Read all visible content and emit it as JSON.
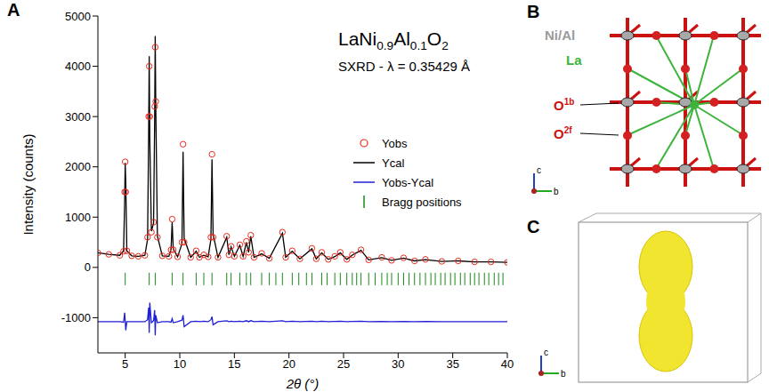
{
  "chart_data": {
    "type": "line",
    "title": "LaNi0.9Al0.1O2",
    "subtitle": "SXRD - λ = 0.35429 Å",
    "x_label": "2θ (°)",
    "y_label": "Intensity (counts)",
    "x": [
      2.5,
      3.5,
      4.5,
      4.85,
      4.95,
      5.0,
      5.05,
      5.15,
      5.6,
      6.2,
      6.8,
      7.05,
      7.15,
      7.2,
      7.25,
      7.4,
      7.6,
      7.7,
      7.75,
      7.8,
      7.95,
      8.4,
      9.0,
      9.2,
      9.3,
      9.4,
      9.8,
      10.2,
      10.3,
      10.4,
      11.0,
      11.5,
      11.8,
      12.2,
      12.6,
      12.85,
      12.95,
      13.05,
      13.5,
      14.3,
      14.5,
      14.7,
      15.0,
      15.5,
      15.8,
      16.1,
      16.3,
      16.5,
      16.8,
      17.5,
      18.2,
      19.4,
      19.7,
      20.3,
      21.0,
      22.1,
      22.5,
      23.0,
      23.6,
      24.2,
      24.7,
      25.3,
      25.8,
      26.6,
      27.3,
      28.5,
      29.4,
      30.5,
      31.5,
      32.5,
      34.0,
      35.5,
      37.0,
      38.5,
      40.0
    ],
    "series": [
      {
        "name": "Yobs",
        "type": "scatter",
        "marker": "circle",
        "color": "#e8291c",
        "values": [
          290,
          260,
          240,
          320,
          1500,
          2100,
          1500,
          330,
          230,
          220,
          240,
          600,
          3000,
          4000,
          3000,
          700,
          900,
          3200,
          4380,
          3300,
          600,
          230,
          220,
          350,
          960,
          350,
          210,
          500,
          2450,
          500,
          200,
          330,
          200,
          250,
          210,
          600,
          2250,
          600,
          200,
          620,
          250,
          420,
          220,
          450,
          220,
          520,
          300,
          640,
          200,
          280,
          180,
          700,
          200,
          330,
          170,
          380,
          170,
          300,
          160,
          220,
          300,
          160,
          250,
          350,
          150,
          200,
          140,
          190,
          130,
          160,
          120,
          130,
          110,
          110,
          100
        ]
      },
      {
        "name": "Ycal",
        "type": "line",
        "color": "#000000",
        "values": [
          290,
          260,
          240,
          330,
          1300,
          2080,
          1700,
          330,
          230,
          220,
          240,
          560,
          2700,
          4200,
          2600,
          720,
          880,
          2950,
          4600,
          3200,
          620,
          230,
          220,
          360,
          900,
          370,
          210,
          470,
          2300,
          580,
          200,
          320,
          200,
          240,
          210,
          560,
          2150,
          660,
          200,
          600,
          250,
          410,
          220,
          440,
          220,
          500,
          300,
          620,
          200,
          270,
          180,
          680,
          200,
          320,
          170,
          370,
          170,
          290,
          160,
          215,
          290,
          160,
          245,
          340,
          150,
          195,
          140,
          185,
          130,
          155,
          120,
          130,
          110,
          110,
          100
        ]
      },
      {
        "name": "Yobs-Ycal",
        "type": "line",
        "color": "#1f1fd6",
        "values": [
          -1080,
          -1080,
          -1080,
          -1090,
          -900,
          -1060,
          -1250,
          -1080,
          -1080,
          -1080,
          -1080,
          -1040,
          -800,
          -1300,
          -700,
          -1100,
          -1060,
          -850,
          -1350,
          -950,
          -1100,
          -1080,
          -1080,
          -1090,
          -1020,
          -1100,
          -1080,
          -1050,
          -950,
          -1180,
          -1080,
          -1070,
          -1080,
          -1070,
          -1080,
          -1040,
          -980,
          -1140,
          -1080,
          -1060,
          -1080,
          -1070,
          -1080,
          -1070,
          -1080,
          -1060,
          -1080,
          -1060,
          -1080,
          -1070,
          -1080,
          -1060,
          -1080,
          -1070,
          -1080,
          -1070,
          -1080,
          -1070,
          -1080,
          -1075,
          -1070,
          -1080,
          -1075,
          -1070,
          -1080,
          -1075,
          -1080,
          -1075,
          -1080,
          -1075,
          -1080,
          -1080,
          -1080,
          -1080,
          -1080
        ]
      },
      {
        "name": "Bragg positions",
        "type": "scatter",
        "marker": "vline",
        "color": "#1a8a1a",
        "x": [
          5.0,
          7.2,
          7.75,
          9.3,
          10.3,
          11.5,
          12.2,
          12.95,
          14.3,
          14.7,
          15.5,
          16.1,
          16.5,
          17.5,
          18.2,
          18.8,
          19.4,
          20.3,
          20.9,
          21.6,
          22.1,
          23.0,
          23.5,
          24.2,
          24.7,
          25.3,
          25.8,
          26.2,
          26.6,
          27.3,
          27.9,
          28.5,
          29.0,
          29.4,
          30.0,
          30.5,
          31.0,
          31.5,
          32.0,
          32.5,
          33.0,
          33.4,
          33.9,
          34.3,
          34.8,
          35.2,
          35.7,
          36.1,
          36.6,
          37.0,
          37.4,
          37.9,
          38.3,
          38.8,
          39.2,
          39.6
        ],
        "values": [
          -230,
          -230,
          -230,
          -230,
          -230,
          -230,
          -230,
          -230,
          -230,
          -230,
          -230,
          -230,
          -230,
          -230,
          -230,
          -230,
          -230,
          -230,
          -230,
          -230,
          -230,
          -230,
          -230,
          -230,
          -230,
          -230,
          -230,
          -230,
          -230,
          -230,
          -230,
          -230,
          -230,
          -230,
          -230,
          -230,
          -230,
          -230,
          -230,
          -230,
          -230,
          -230,
          -230,
          -230,
          -230,
          -230,
          -230,
          -230,
          -230,
          -230,
          -230,
          -230,
          -230,
          -230,
          -230,
          -230
        ]
      }
    ],
    "xlim": [
      2.5,
      40
    ],
    "xticks": [
      5,
      10,
      15,
      20,
      25,
      30,
      35,
      40
    ],
    "ylim": [
      -1700,
      5000
    ],
    "yticks": [
      -1000,
      0,
      1000,
      2000,
      3000,
      4000,
      5000
    ],
    "legend": "right",
    "grid": false
  },
  "panel_labels": [
    "A",
    "B",
    "C"
  ],
  "structure": {
    "labels": [
      {
        "text": "Ni/Al",
        "color": "#9a9a9a"
      },
      {
        "text": "La",
        "color": "#3cb43c"
      },
      {
        "text": "O",
        "sup": "1b",
        "color": "#cc1111"
      },
      {
        "text": "O",
        "sup": "2f",
        "color": "#cc1111"
      }
    ],
    "axis_labels": [
      "c",
      "b"
    ]
  },
  "density": {
    "axis_labels": [
      "c",
      "b"
    ]
  }
}
